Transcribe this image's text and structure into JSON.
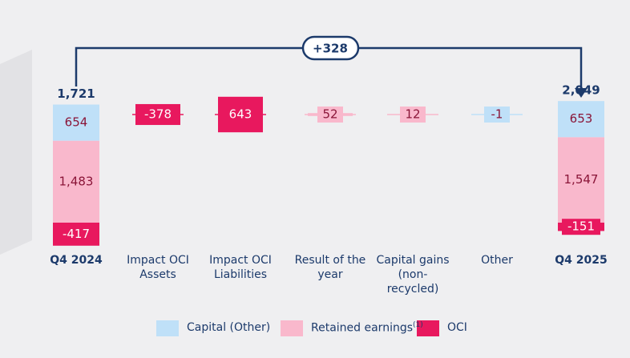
{
  "chart_data": {
    "type": "waterfall",
    "categories": [
      "Q4 2024",
      "Impact OCI Assets",
      "Impact OCI Liabilities",
      "Result of the year",
      "Capital gains (non-recycled)",
      "Other",
      "Q4 2025"
    ],
    "series": [
      {
        "name": "Capital (Other)",
        "color": "#bfe0f8",
        "values": [
          654,
          null,
          null,
          null,
          null,
          -1,
          653
        ],
        "value_labels": [
          "654",
          null,
          null,
          null,
          null,
          "-1",
          "653"
        ]
      },
      {
        "name": "Retained earnings",
        "name_note": "(1)",
        "color": "#f9b8cc",
        "values": [
          1483,
          null,
          null,
          52,
          12,
          null,
          1547
        ],
        "value_labels": [
          "1,483",
          null,
          null,
          "52",
          "12",
          null,
          "1,547"
        ]
      },
      {
        "name": "OCI",
        "color": "#e8185e",
        "values": [
          -417,
          -378,
          643,
          null,
          null,
          null,
          -151
        ],
        "value_labels": [
          "-417",
          "-378",
          "643",
          null,
          null,
          null,
          "-151"
        ]
      }
    ],
    "totals": [
      1721,
      2049
    ],
    "total_labels": [
      "1,721",
      "2,049"
    ],
    "change": 328,
    "change_label": "+328"
  }
}
